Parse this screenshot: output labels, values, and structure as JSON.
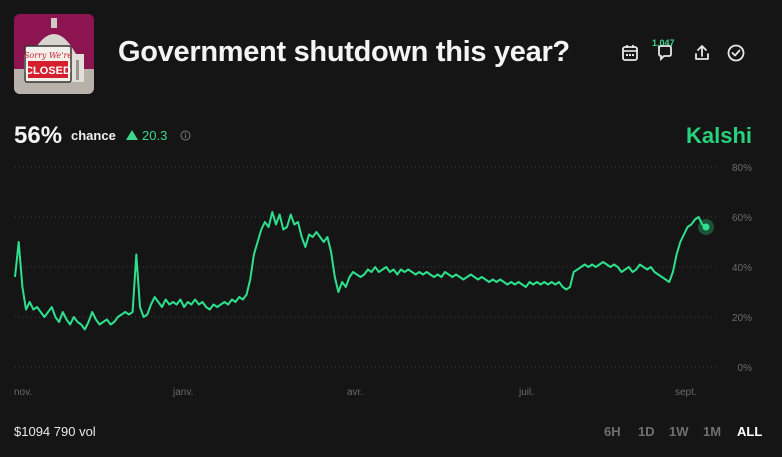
{
  "market": {
    "title": "Government shutdown this year?",
    "thumbnail_text": [
      "Sorry We're",
      "CLOSED"
    ]
  },
  "header": {
    "comment_count": "1,047",
    "icons": [
      "calendar-icon",
      "comment-icon",
      "share-icon",
      "check-circle-icon"
    ]
  },
  "summary": {
    "probability": "56%",
    "chance_label": "chance",
    "delta": "20.3",
    "delta_direction": "up",
    "source": "Kalshi"
  },
  "footer": {
    "volume": "$1094 790 vol",
    "ranges": [
      "6H",
      "1D",
      "1W",
      "1M",
      "ALL"
    ],
    "active_range": "ALL"
  },
  "colors": {
    "background": "#151515",
    "line": "#2ee08c",
    "accent": "#3ed68a",
    "brand": "#28d17c",
    "grid": "#3a3a3a",
    "axis_text": "#6a6a6a"
  },
  "chart_data": {
    "type": "line",
    "x_tick_labels": [
      "nov.",
      "janv.",
      "avr.",
      "juil.",
      "sept."
    ],
    "y_tick_labels": [
      "0%",
      "20%",
      "40%",
      "60%",
      "80%"
    ],
    "ylim": [
      0,
      80
    ],
    "y_unit": "%",
    "grid": "horizontal dotted",
    "series": [
      {
        "values": [
          36,
          50,
          32,
          23,
          26,
          23,
          24,
          22,
          20,
          22,
          24,
          20,
          18,
          22,
          19,
          17,
          20,
          18,
          17,
          15,
          18,
          22,
          19,
          17,
          18,
          19,
          17,
          18,
          20,
          21,
          22,
          21,
          22,
          45,
          24,
          20,
          21,
          25,
          28,
          26,
          24,
          27,
          25,
          26,
          25,
          27,
          24,
          26,
          25,
          27,
          25,
          26,
          24,
          23,
          25,
          24,
          25,
          26,
          25,
          27,
          26,
          28,
          27,
          29,
          35,
          45,
          50,
          55,
          58,
          56,
          62,
          57,
          61,
          55,
          56,
          61,
          57,
          58,
          52,
          48,
          53,
          52,
          54,
          52,
          50,
          52,
          46,
          36,
          30,
          34,
          32,
          36,
          38,
          37,
          36,
          37,
          39,
          38,
          40,
          38,
          39,
          40,
          38,
          39,
          37,
          39,
          38,
          39,
          38,
          37,
          38,
          37,
          38,
          37,
          36,
          37,
          36,
          38,
          37,
          36,
          37,
          36,
          35,
          36,
          37,
          36,
          35,
          36,
          35,
          34,
          35,
          34,
          35,
          34,
          33,
          34,
          33,
          34,
          33,
          32,
          34,
          33,
          34,
          33,
          34,
          33,
          34,
          33,
          34,
          32,
          31,
          32,
          38,
          39,
          40,
          41,
          40,
          41,
          40,
          41,
          42,
          41,
          40,
          41,
          40,
          38,
          39,
          40,
          38,
          39,
          41,
          40,
          39,
          40,
          38,
          37,
          36,
          35,
          34,
          38,
          45,
          50,
          53,
          56,
          57,
          59,
          60,
          57,
          56
        ]
      }
    ]
  }
}
